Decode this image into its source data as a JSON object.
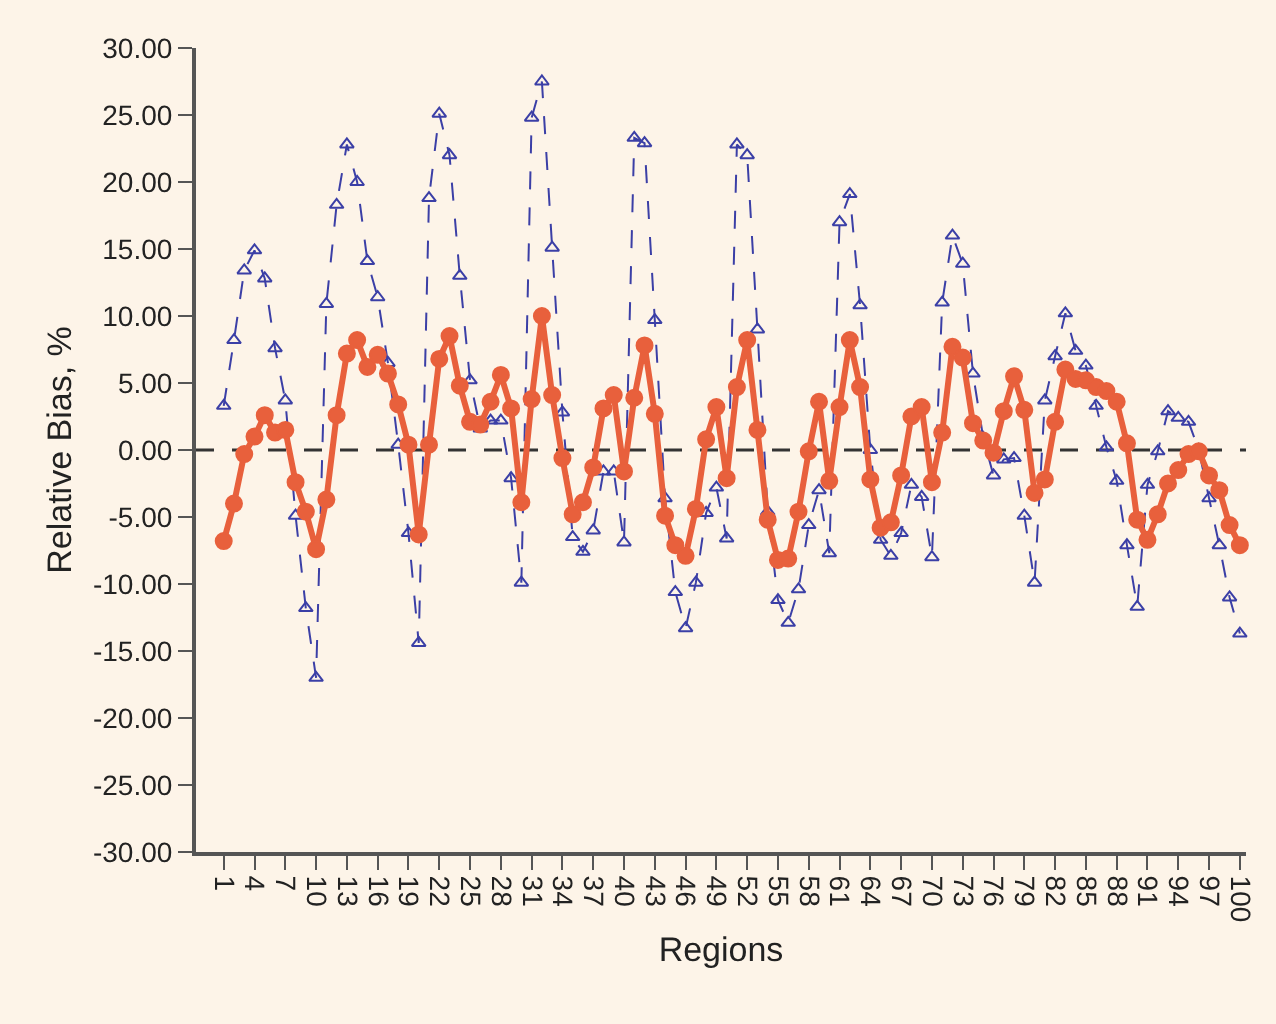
{
  "chart_data": {
    "type": "line",
    "xlabel": "Regions",
    "ylabel": "Relative Bias, %",
    "x": [
      1,
      2,
      3,
      4,
      5,
      6,
      7,
      8,
      9,
      10,
      11,
      12,
      13,
      14,
      15,
      16,
      17,
      18,
      19,
      20,
      21,
      22,
      23,
      24,
      25,
      26,
      27,
      28,
      29,
      30,
      31,
      32,
      33,
      34,
      35,
      36,
      37,
      38,
      39,
      40,
      41,
      42,
      43,
      44,
      45,
      46,
      47,
      48,
      49,
      50,
      51,
      52,
      53,
      54,
      55,
      56,
      57,
      58,
      59,
      60,
      61,
      62,
      63,
      64,
      65,
      66,
      67,
      68,
      69,
      70,
      71,
      72,
      73,
      74,
      75,
      76,
      77,
      78,
      79,
      80,
      81,
      82,
      83,
      84,
      85,
      86,
      87,
      88,
      89,
      90,
      91,
      92,
      93,
      94,
      95,
      96,
      97,
      98,
      99,
      100
    ],
    "series": [
      {
        "color": "#3b3fa6",
        "marker": "triangle",
        "line_style": "dashed",
        "values": [
          3.3,
          8.2,
          13.4,
          14.9,
          12.8,
          7.6,
          3.7,
          -4.9,
          -11.8,
          -17.0,
          10.9,
          18.3,
          22.8,
          20.0,
          14.1,
          11.4,
          6.5,
          0.4,
          -6.2,
          -14.4,
          18.8,
          25.1,
          22.0,
          13.0,
          5.2,
          1.6,
          2.2,
          2.2,
          -2.1,
          -9.9,
          24.8,
          27.5,
          15.1,
          2.8,
          -6.5,
          -7.6,
          -6.0,
          -1.6,
          -1.6,
          -6.9,
          23.3,
          22.9,
          9.7,
          -3.6,
          -10.6,
          -13.3,
          -9.9,
          -4.7,
          -2.8,
          -6.6,
          22.8,
          22.0,
          9.0,
          -4.6,
          -11.2,
          -12.9,
          -10.4,
          -5.6,
          -3.0,
          -7.7,
          17.0,
          19.1,
          10.8,
          0.0,
          -6.7,
          -7.9,
          -6.2,
          -2.6,
          -3.5,
          -8.0,
          11.0,
          16.0,
          13.9,
          5.7,
          0.9,
          -1.9,
          -0.7,
          -0.6,
          -4.9,
          -9.9,
          3.7,
          7.0,
          10.2,
          7.4,
          6.3,
          3.3,
          0.2,
          -2.3,
          -7.1,
          -11.7,
          -2.6,
          -0.1,
          2.9,
          2.4,
          2.1,
          0.0,
          -3.6,
          -7.1,
          -11.0,
          -13.7
        ]
      },
      {
        "color": "#e8603c",
        "marker": "circle",
        "line_style": "solid",
        "values": [
          -6.8,
          -4.0,
          -0.3,
          1.0,
          2.6,
          1.3,
          1.5,
          -2.4,
          -4.6,
          -7.4,
          -3.7,
          2.6,
          7.2,
          8.2,
          6.2,
          7.1,
          5.7,
          3.4,
          0.4,
          -6.3,
          0.4,
          6.8,
          8.5,
          4.8,
          2.1,
          1.9,
          3.6,
          5.6,
          3.1,
          -3.9,
          3.8,
          10.0,
          4.1,
          -0.6,
          -4.8,
          -3.9,
          -1.3,
          3.1,
          4.1,
          -1.6,
          3.9,
          7.8,
          2.7,
          -4.9,
          -7.1,
          -7.9,
          -4.4,
          0.8,
          3.2,
          -2.1,
          4.7,
          8.2,
          1.5,
          -5.2,
          -8.2,
          -8.1,
          -4.6,
          -0.1,
          3.6,
          -2.3,
          3.2,
          8.2,
          4.7,
          -2.2,
          -5.8,
          -5.4,
          -1.9,
          2.5,
          3.2,
          -2.4,
          1.3,
          7.7,
          6.9,
          2.0,
          0.7,
          -0.2,
          2.9,
          5.5,
          3.0,
          -3.2,
          -2.2,
          2.1,
          6.0,
          5.3,
          5.2,
          4.7,
          4.4,
          3.6,
          0.5,
          -5.2,
          -6.7,
          -4.8,
          -2.5,
          -1.5,
          -0.3,
          -0.1,
          -1.9,
          -3.0,
          -5.6,
          -7.1
        ]
      }
    ],
    "xlim": [
      -1.7,
      100.6
    ],
    "xticks": [
      1,
      4,
      7,
      10,
      13,
      16,
      19,
      22,
      25,
      28,
      31,
      34,
      37,
      40,
      43,
      46,
      49,
      52,
      55,
      58,
      61,
      64,
      67,
      70,
      73,
      76,
      79,
      82,
      85,
      88,
      91,
      94,
      97,
      100
    ],
    "ylim": [
      -30,
      30
    ],
    "yticks": [
      {
        "value": -30,
        "label": "-30.00"
      },
      {
        "value": -25,
        "label": "-25.00"
      },
      {
        "value": -20,
        "label": "-20.00"
      },
      {
        "value": -15,
        "label": "-15.00"
      },
      {
        "value": -10,
        "label": "-10.00"
      },
      {
        "value": -5,
        "label": "-5.00"
      },
      {
        "value": 0,
        "label": "0.00"
      },
      {
        "value": 5,
        "label": "5.00"
      },
      {
        "value": 10,
        "label": "10.00"
      },
      {
        "value": 15,
        "label": "15.00"
      },
      {
        "value": 20,
        "label": "20.00"
      },
      {
        "value": 25,
        "label": "25.00"
      },
      {
        "value": 30,
        "label": "30.00"
      }
    ],
    "ref_lines": [
      {
        "axis": "y",
        "value": 0,
        "color": "#333333",
        "line_style": "dashed"
      }
    ]
  }
}
